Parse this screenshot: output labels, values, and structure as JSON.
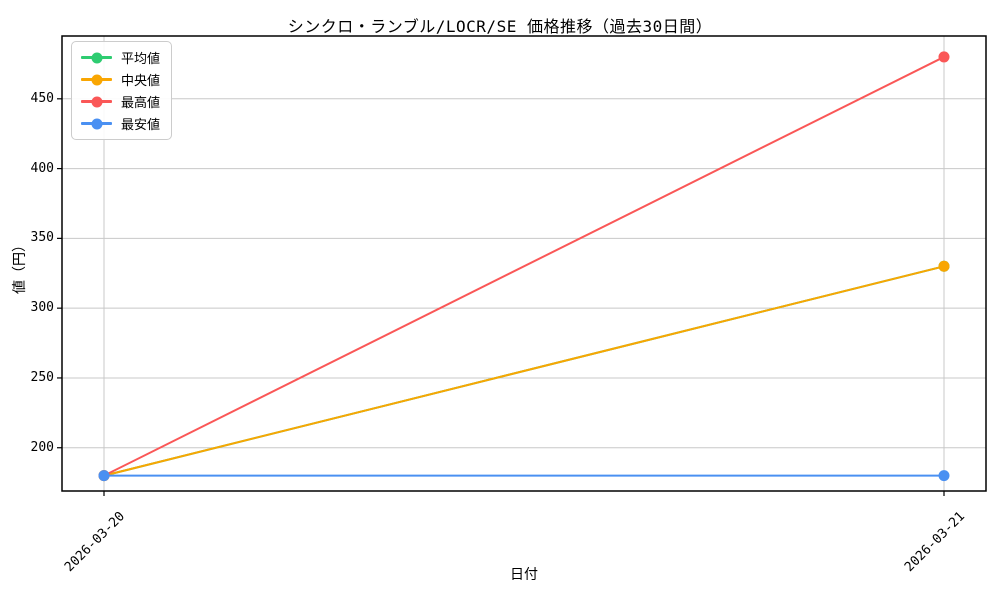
{
  "chart_data": {
    "type": "line",
    "title": "シンクロ・ランブル/LOCR/SE 価格推移（過去30日間）",
    "xlabel": "日付",
    "ylabel": "値（円）",
    "categories": [
      "2026-03-20",
      "2026-03-21"
    ],
    "series": [
      {
        "name": "平均値",
        "color": "#2ecc71",
        "values": [
          180,
          330
        ]
      },
      {
        "name": "中央値",
        "color": "#f9a602",
        "values": [
          180,
          330
        ]
      },
      {
        "name": "最高値",
        "color": "#fa5757",
        "values": [
          180,
          480
        ]
      },
      {
        "name": "最安値",
        "color": "#4a90f2",
        "values": [
          180,
          180
        ]
      }
    ],
    "yticks": [
      200,
      250,
      300,
      350,
      400,
      450
    ],
    "ylim": [
      169,
      495
    ],
    "grid": true,
    "grid_color": "#c8c8c8",
    "spine_color": "#000000",
    "background_color": "#ffffff",
    "legend_position": "upper left",
    "x_tick_rotation": 45
  }
}
